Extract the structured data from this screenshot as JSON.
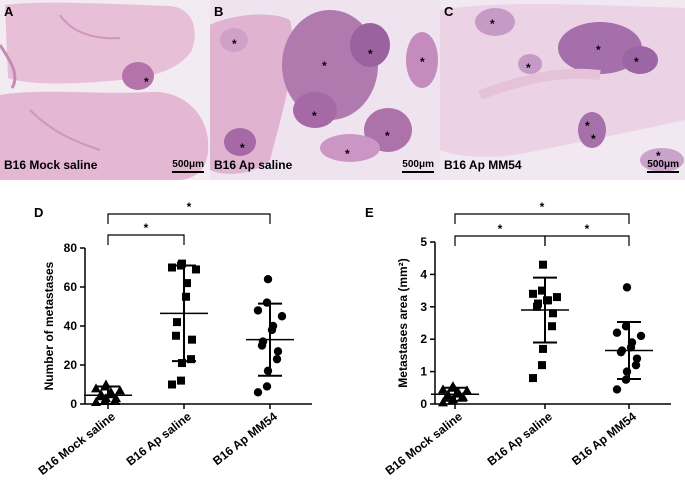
{
  "panels": [
    {
      "letter": "A",
      "caption": "B16 Mock saline",
      "scale": "500μm"
    },
    {
      "letter": "B",
      "caption": "B16 Ap saline",
      "scale": "500μm"
    },
    {
      "letter": "C",
      "caption": "B16 Ap MM54",
      "scale": "500μm"
    }
  ],
  "colors": {
    "tissue_bg": "#efe6ef",
    "tissue_light": "#e6bcd6",
    "tissue_mid": "#c987b7",
    "tumor": "#a060a6",
    "tumor_dark": "#7e4a8f"
  },
  "chart_data": [
    {
      "letter": "D",
      "type": "scatter",
      "ylabel": "Number of metastases",
      "ylim": [
        0,
        80
      ],
      "yticks": [
        0,
        20,
        40,
        60,
        80
      ],
      "categories": [
        "B16 Mock saline",
        "B16 Ap saline",
        "B16 Ap MM54"
      ],
      "markers": [
        "triangle",
        "square",
        "circle"
      ],
      "mean": [
        4.5,
        46.5,
        33
      ],
      "sd": [
        4.5,
        24.5,
        18.5
      ],
      "points": [
        [
          1,
          2,
          3,
          2,
          3,
          4,
          5,
          5,
          6,
          7,
          8,
          9,
          10
        ],
        [
          10,
          12,
          21,
          23,
          33,
          35,
          42,
          55,
          62,
          69,
          70,
          71,
          72
        ],
        [
          6,
          9,
          17,
          23,
          27,
          30,
          32,
          38,
          40,
          45,
          48,
          52,
          64
        ]
      ],
      "significance": [
        {
          "from": 0,
          "to": 1,
          "label": "*"
        },
        {
          "from": 0,
          "to": 2,
          "label": "*"
        }
      ]
    },
    {
      "letter": "E",
      "type": "scatter",
      "ylabel": "Metastases area (mm²)",
      "ylim": [
        0,
        5
      ],
      "yticks": [
        0,
        1,
        2,
        3,
        4,
        5
      ],
      "categories": [
        "B16 Mock saline",
        "B16 Ap saline",
        "B16 Ap MM54"
      ],
      "markers": [
        "triangle",
        "square",
        "circle"
      ],
      "mean": [
        0.3,
        2.9,
        1.65
      ],
      "sd": [
        0.2,
        1.0,
        0.88
      ],
      "points": [
        [
          0.05,
          0.1,
          0.15,
          0.2,
          0.22,
          0.25,
          0.3,
          0.32,
          0.38,
          0.42,
          0.45,
          0.5,
          0.55
        ],
        [
          0.8,
          1.2,
          1.7,
          2.4,
          2.8,
          3.0,
          3.1,
          3.2,
          3.2,
          3.3,
          3.4,
          3.5,
          4.3
        ],
        [
          0.45,
          0.75,
          1.0,
          1.2,
          1.4,
          1.6,
          1.65,
          1.75,
          1.9,
          2.1,
          2.2,
          2.4,
          3.6
        ]
      ],
      "significance": [
        {
          "from": 0,
          "to": 1,
          "label": "*"
        },
        {
          "from": 1,
          "to": 2,
          "label": "*"
        },
        {
          "from": 0,
          "to": 2,
          "label": "*"
        }
      ]
    }
  ]
}
